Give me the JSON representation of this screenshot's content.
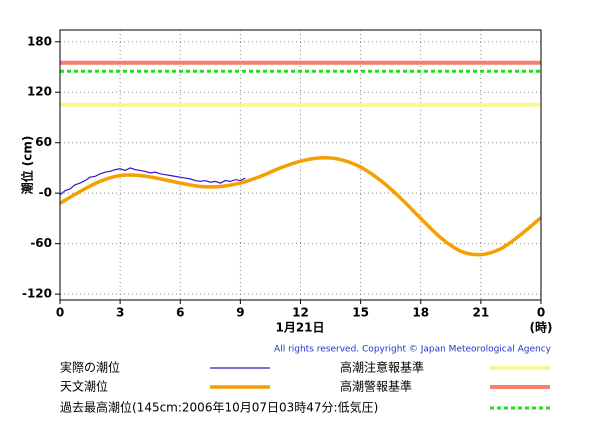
{
  "chart_data": {
    "type": "line",
    "ylabel": "潮位 (cm)",
    "xlabel": "1月21日",
    "xunit": "(時)",
    "credit": "All rights reserved. Copyright © Japan Meteorological Agency",
    "xlim": [
      0,
      24
    ],
    "xticks": [
      0,
      3,
      6,
      9,
      12,
      15,
      18,
      21,
      {
        "value": 24,
        "label": "0"
      }
    ],
    "ylim": [
      -127,
      194
    ],
    "yticks": [
      -120,
      -60,
      {
        "value": 0,
        "label": "-0"
      },
      60,
      120,
      180
    ],
    "grid": true,
    "series": [
      {
        "name": "実際の潮位",
        "color": "#3a16c8",
        "x": [
          0,
          0.25,
          0.5,
          0.75,
          1,
          1.25,
          1.5,
          1.75,
          2,
          2.25,
          2.5,
          2.75,
          3,
          3.25,
          3.5,
          3.75,
          4,
          4.25,
          4.5,
          4.75,
          5,
          5.25,
          5.5,
          5.75,
          6,
          6.25,
          6.5,
          6.75,
          7,
          7.25,
          7.5,
          7.75,
          8,
          8.25,
          8.5,
          8.75,
          9,
          9.25
        ],
        "values": [
          -2,
          3,
          5,
          10,
          12,
          15,
          19,
          20,
          23,
          25,
          26,
          28,
          29,
          27,
          30,
          28,
          27,
          26,
          24,
          25,
          23,
          22,
          21,
          20,
          19,
          18,
          17,
          15,
          14,
          15,
          13,
          14,
          12,
          15,
          14,
          16,
          15,
          18
        ]
      },
      {
        "name": "天文潮位",
        "color": "#f5a000",
        "x": [
          0,
          1,
          2,
          3,
          4,
          5,
          6,
          7,
          8,
          9,
          10,
          11,
          12,
          13,
          14,
          15,
          16,
          17,
          18,
          19,
          20,
          21,
          22,
          23,
          24
        ],
        "values": [
          -12,
          2,
          14,
          21,
          21,
          17,
          12,
          8,
          8,
          12,
          20,
          30,
          38,
          42,
          40,
          31,
          15,
          -6,
          -30,
          -53,
          -69,
          -73,
          -66,
          -49,
          -29
        ]
      }
    ],
    "thresholds": [
      {
        "name": "過去最高潮位(145cm:2006年10月07日03時47分:低気圧)",
        "color": "#22dd22",
        "value": 145,
        "dashed": true
      },
      {
        "name": "高潮注意報基準",
        "color": "#f8f890",
        "value": 105,
        "dashed": false
      },
      {
        "name": "高潮警報基準",
        "color": "#f47f6a",
        "value": 155,
        "dashed": false
      }
    ]
  }
}
